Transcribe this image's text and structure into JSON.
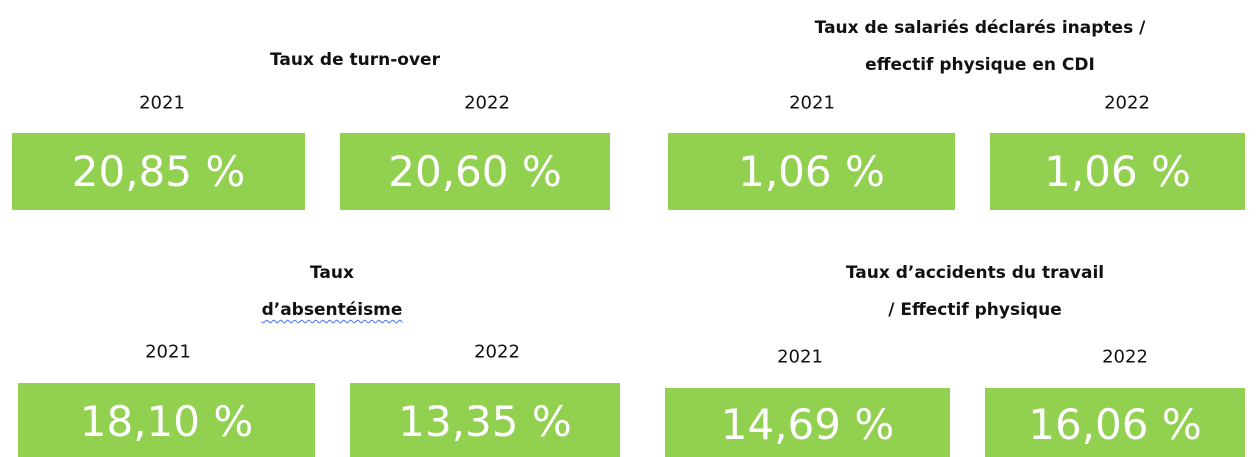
{
  "panels": [
    {
      "title": [
        "Taux de turn-over"
      ],
      "years": [
        "2021",
        "2022"
      ],
      "values": [
        "20,85 %",
        "20,60 %"
      ]
    },
    {
      "title": [
        "Taux de salariés déclarés inaptes /",
        "effectif physique en CDI"
      ],
      "years": [
        "2021",
        "2022"
      ],
      "values": [
        "1,06 %",
        "1,06 %"
      ]
    },
    {
      "title": [
        "Taux",
        "d’absentéisme"
      ],
      "years": [
        "2021",
        "2022"
      ],
      "values": [
        "18,10 %",
        "13,35 %"
      ]
    },
    {
      "title": [
        "Taux d’accidents du travail",
        "/ Effectif physique"
      ],
      "years": [
        "2021",
        "2022"
      ],
      "values": [
        "14,69 %",
        "16,06 %"
      ]
    }
  ]
}
